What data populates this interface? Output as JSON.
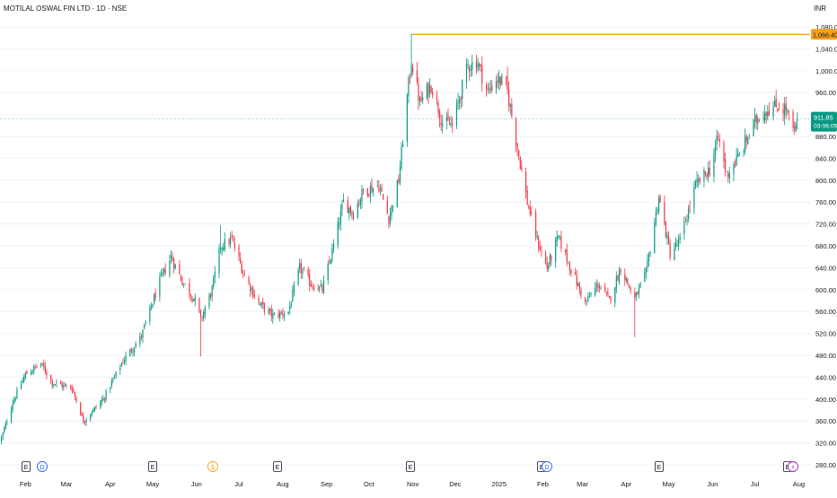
{
  "header": {
    "title": "MOTILAL OSWAL FIN LTD · 1D · NSE",
    "currency": "INR"
  },
  "colors": {
    "up": "#089981",
    "down": "#f23645",
    "grid": "#f0f3fa",
    "axis_text": "#131722",
    "resistance": "#f7a21b",
    "current_line": "#089981",
    "event_earnings": "#131722",
    "event_dividend_blue": "#2962ff",
    "event_dividend_orange": "#f7a21b",
    "event_split": "#9c27b0"
  },
  "chart_data": {
    "type": "candlestick",
    "title": "MOTILAL OSWAL FIN LTD · 1D · NSE",
    "ylim": [
      270,
      1095
    ],
    "y_ticks": [
      "1,080.00",
      "1,040.00",
      "1,000.00",
      "960.00",
      "920.00",
      "880.00",
      "840.00",
      "800.00",
      "760.00",
      "720.00",
      "680.00",
      "640.00",
      "600.00",
      "560.00",
      "520.00",
      "480.00",
      "440.00",
      "400.00",
      "360.00",
      "320.00",
      "280.00"
    ],
    "x_ticks": [
      "Feb",
      "Mar",
      "Apr",
      "May",
      "Jun",
      "Jul",
      "Aug",
      "Sep",
      "Oct",
      "Nov",
      "Dec",
      "2025",
      "Feb",
      "Mar",
      "Apr",
      "May",
      "Jun",
      "Jul",
      "Aug"
    ],
    "horizontal_line": {
      "value": 1066.4,
      "label": "1,066.40"
    },
    "last_price": {
      "value": 911.85,
      "label": "911.85",
      "countdown": "03:06:05"
    },
    "events": [
      {
        "type": "earnings",
        "glyph": "E",
        "tick": "Jan"
      },
      {
        "type": "dividend",
        "glyph": "D",
        "tick": "Jan"
      },
      {
        "type": "earnings",
        "glyph": "E",
        "tick": "Apr"
      },
      {
        "type": "dividend",
        "glyph": "$",
        "tick": "May"
      },
      {
        "type": "earnings",
        "glyph": "E",
        "tick": "Jul"
      },
      {
        "type": "earnings",
        "glyph": "E",
        "tick": "Oct"
      },
      {
        "type": "earnings",
        "glyph": "E",
        "tick": "Jan"
      },
      {
        "type": "dividend",
        "glyph": "D",
        "tick": "Jan"
      },
      {
        "type": "earnings",
        "glyph": "E",
        "tick": "Apr"
      },
      {
        "type": "earnings",
        "glyph": "E",
        "tick": "Jul"
      },
      {
        "type": "split",
        "glyph": "⚡",
        "tick": "Jul"
      }
    ],
    "anchors": [
      [
        "2024-01-15",
        328
      ],
      [
        "2024-01-23",
        395
      ],
      [
        "2024-02-01",
        445
      ],
      [
        "2024-02-12",
        465
      ],
      [
        "2024-02-20",
        430
      ],
      [
        "2024-03-05",
        420
      ],
      [
        "2024-03-13",
        360
      ],
      [
        "2024-03-27",
        400
      ],
      [
        "2024-04-10",
        470
      ],
      [
        "2024-04-23",
        515
      ],
      [
        "2024-05-06",
        615
      ],
      [
        "2024-05-14",
        660
      ],
      [
        "2024-05-22",
        615
      ],
      [
        "2024-05-31",
        580
      ],
      [
        "2024-06-04",
        545
      ],
      [
        "2024-06-12",
        600
      ],
      [
        "2024-06-18",
        680
      ],
      [
        "2024-06-26",
        692
      ],
      [
        "2024-07-05",
        625
      ],
      [
        "2024-07-15",
        575
      ],
      [
        "2024-07-25",
        552
      ],
      [
        "2024-08-05",
        560
      ],
      [
        "2024-08-13",
        640
      ],
      [
        "2024-08-21",
        610
      ],
      [
        "2024-08-29",
        600
      ],
      [
        "2024-09-06",
        680
      ],
      [
        "2024-09-13",
        760
      ],
      [
        "2024-09-20",
        740
      ],
      [
        "2024-09-27",
        780
      ],
      [
        "2024-10-08",
        790
      ],
      [
        "2024-10-15",
        730
      ],
      [
        "2024-10-22",
        800
      ],
      [
        "2024-10-28",
        950
      ],
      [
        "2024-10-31",
        1020
      ],
      [
        "2024-11-06",
        940
      ],
      [
        "2024-11-14",
        975
      ],
      [
        "2024-11-22",
        905
      ],
      [
        "2024-11-29",
        900
      ],
      [
        "2024-12-10",
        1010
      ],
      [
        "2024-12-17",
        1015
      ],
      [
        "2024-12-24",
        960
      ],
      [
        "2024-12-30",
        985
      ],
      [
        "2025-01-06",
        975
      ],
      [
        "2025-01-14",
        860
      ],
      [
        "2025-01-21",
        760
      ],
      [
        "2025-01-28",
        690
      ],
      [
        "2025-02-04",
        640
      ],
      [
        "2025-02-12",
        695
      ],
      [
        "2025-02-19",
        650
      ],
      [
        "2025-03-03",
        575
      ],
      [
        "2025-03-12",
        610
      ],
      [
        "2025-03-20",
        580
      ],
      [
        "2025-03-28",
        640
      ],
      [
        "2025-04-07",
        582
      ],
      [
        "2025-04-15",
        630
      ],
      [
        "2025-04-24",
        770
      ],
      [
        "2025-05-02",
        665
      ],
      [
        "2025-05-09",
        690
      ],
      [
        "2025-05-20",
        790
      ],
      [
        "2025-05-30",
        820
      ],
      [
        "2025-06-05",
        878
      ],
      [
        "2025-06-11",
        810
      ],
      [
        "2025-06-20",
        845
      ],
      [
        "2025-06-27",
        885
      ],
      [
        "2025-07-03",
        915
      ],
      [
        "2025-07-10",
        930
      ],
      [
        "2025-07-17",
        935
      ],
      [
        "2025-07-23",
        930
      ],
      [
        "2025-07-29",
        885
      ],
      [
        "2025-07-31",
        911.85
      ]
    ]
  }
}
